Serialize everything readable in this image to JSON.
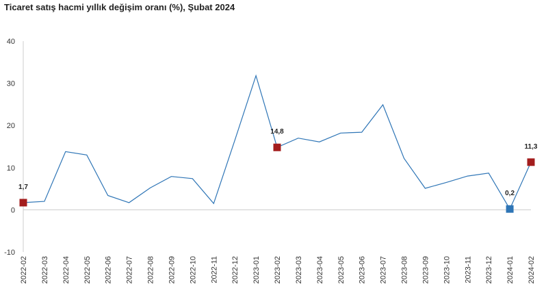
{
  "chart_data": {
    "type": "line",
    "title": "Ticaret satış hacmi yıllık değişim oranı (%), Şubat 2024",
    "xlabel": "",
    "ylabel": "",
    "ylim": [
      -10,
      40
    ],
    "yticks": [
      -10,
      0,
      10,
      20,
      30,
      40
    ],
    "grid": false,
    "categories": [
      "2022-02",
      "2022-03",
      "2022-04",
      "2022-05",
      "2022-06",
      "2022-07",
      "2022-08",
      "2022-09",
      "2022-10",
      "2022-11",
      "2022-12",
      "2023-01",
      "2023-02",
      "2023-03",
      "2023-04",
      "2023-05",
      "2023-06",
      "2023-07",
      "2023-08",
      "2023-09",
      "2023-10",
      "2023-11",
      "2023-12",
      "2024-01",
      "2024-02"
    ],
    "series": [
      {
        "values": [
          1.7,
          2.0,
          13.8,
          13.0,
          3.4,
          1.7,
          5.2,
          7.9,
          7.4,
          1.5,
          16.5,
          31.8,
          14.8,
          17.0,
          16.1,
          18.2,
          18.4,
          24.9,
          12.2,
          5.1,
          6.5,
          8.0,
          8.7,
          0.2,
          11.3
        ],
        "color": "#2e75b6"
      }
    ],
    "highlighted_points": [
      {
        "index": 0,
        "label": "1,7",
        "color": "#a31d1d"
      },
      {
        "index": 12,
        "label": "14,8",
        "color": "#a31d1d"
      },
      {
        "index": 23,
        "label": "0,2",
        "color": "#2e75b6"
      },
      {
        "index": 24,
        "label": "11,3",
        "color": "#a31d1d"
      }
    ],
    "axis_color": "#cccccc"
  }
}
